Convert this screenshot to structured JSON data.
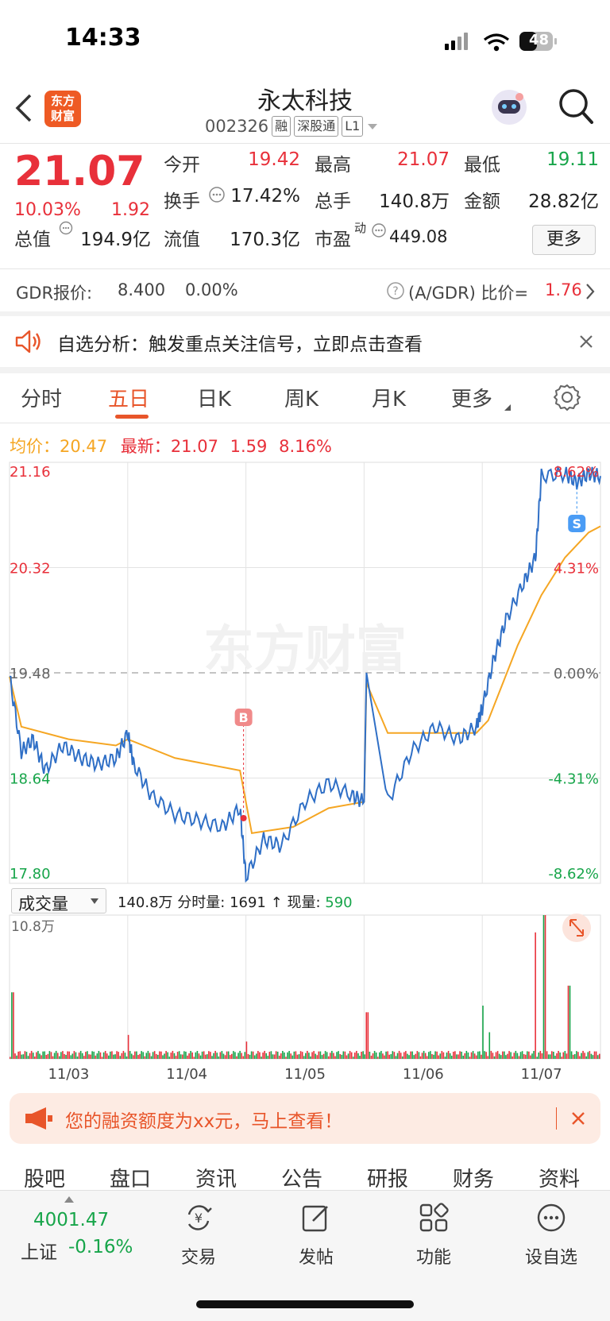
{
  "status_bar": {
    "time": "14:33",
    "battery": "48"
  },
  "header": {
    "logo_text_1": "东方",
    "logo_text_2": "财富",
    "stock_name": "永太科技",
    "stock_code": "002326",
    "tags": [
      "融",
      "深股通",
      "L1"
    ]
  },
  "quote": {
    "price": "21.07",
    "change_pct": "10.03%",
    "change": "1.92",
    "rows": [
      [
        {
          "label": "今开",
          "value": "19.42",
          "color": "red"
        },
        {
          "label": "最高",
          "value": "21.07",
          "color": "red"
        },
        {
          "label": "最低",
          "value": "19.11",
          "color": "green"
        }
      ],
      [
        {
          "label": "换手",
          "value": "17.42%",
          "color": "dark"
        },
        {
          "label": "总手",
          "value": "140.8万",
          "color": "dark"
        },
        {
          "label": "金额",
          "value": "28.82亿",
          "color": "dark"
        }
      ],
      [
        {
          "label": "总值",
          "value": "194.9亿",
          "color": "dark"
        },
        {
          "label": "流值",
          "value": "170.3亿",
          "color": "dark"
        },
        {
          "label": "市盈",
          "value": "449.08",
          "color": "dark"
        }
      ]
    ],
    "pe_sup": "动",
    "more": "更多"
  },
  "gdr": {
    "label": "GDR报价:",
    "price": "8.400",
    "pct": "0.00%",
    "ratio_label": "(A/GDR) 比价=",
    "ratio": "1.76"
  },
  "alert": {
    "text": "自选分析：触发重点关注信号，立即点击查看"
  },
  "tabs": [
    "分时",
    "五日",
    "日K",
    "周K",
    "月K",
    "更多"
  ],
  "active_tab": "五日",
  "legend": {
    "avg_label": "均价：",
    "avg": "20.47",
    "latest_label": "最新：",
    "latest": "21.07",
    "chg": "1.59",
    "pct": "8.16%"
  },
  "watermark": "东方财富",
  "volume_selector": {
    "label": "成交量",
    "total": "140.8万",
    "tick_label": "分时量:",
    "tick": "1691",
    "now_label": "现量:",
    "now": "590"
  },
  "colors": {
    "price_line": "#2f6fc6",
    "avg_line": "#f5a623",
    "up": "#e8303a",
    "down": "#17a54a"
  },
  "chart_data": {
    "type": "line",
    "title": "",
    "y_ticks_left": [
      "21.16",
      "20.32",
      "19.48",
      "18.64",
      "17.80"
    ],
    "y_ticks_right": [
      "8.62%",
      "4.31%",
      "0.00%",
      "-4.31%",
      "-8.62%"
    ],
    "ylim": [
      17.8,
      21.16
    ],
    "prev_close": 19.48,
    "x_labels": [
      "11/03",
      "11/04",
      "11/05",
      "11/06",
      "11/07"
    ],
    "markers": [
      {
        "label": "B",
        "day": "11/04"
      },
      {
        "label": "S",
        "day": "11/07"
      }
    ],
    "price_series": {
      "name": "",
      "x": [
        0,
        0.1,
        0.2,
        0.3,
        0.45,
        0.6,
        0.75,
        0.9,
        1.0,
        1.05,
        1.2,
        1.4,
        1.6,
        1.8,
        1.95,
        2.0,
        2.15,
        2.3,
        2.5,
        2.7,
        2.9,
        3.0,
        3.02,
        3.2,
        3.4,
        3.6,
        3.8,
        3.95,
        4.0,
        4.1,
        4.2,
        4.35,
        4.45,
        4.5,
        4.7,
        4.8,
        4.9,
        5.0
      ],
      "values": [
        19.45,
        18.85,
        18.95,
        18.7,
        18.9,
        18.8,
        18.75,
        18.8,
        19.0,
        18.75,
        18.5,
        18.35,
        18.3,
        18.25,
        18.4,
        17.85,
        18.15,
        18.1,
        18.45,
        18.6,
        18.5,
        18.45,
        19.48,
        18.45,
        18.85,
        19.05,
        18.95,
        19.05,
        19.2,
        19.6,
        19.9,
        20.2,
        20.4,
        21.05,
        21.07,
        21.0,
        21.07,
        21.05
      ]
    },
    "avg_series": {
      "name": "",
      "x": [
        0,
        0.1,
        0.5,
        0.9,
        1.0,
        1.4,
        1.95,
        2.05,
        2.4,
        2.7,
        3.0,
        3.02,
        3.2,
        3.5,
        3.95,
        4.05,
        4.3,
        4.5,
        4.7,
        4.9,
        5.0
      ],
      "values": [
        19.45,
        19.05,
        18.95,
        18.9,
        18.95,
        18.8,
        18.7,
        18.2,
        18.25,
        18.4,
        18.45,
        19.4,
        19.0,
        19.0,
        19.0,
        19.1,
        19.7,
        20.1,
        20.4,
        20.6,
        20.65
      ]
    },
    "volume_ymax": "10.8万",
    "volume_peaks": [
      {
        "x": 0.02,
        "v": 5.0
      },
      {
        "x": 1.0,
        "v": 1.8
      },
      {
        "x": 2.0,
        "v": 1.3
      },
      {
        "x": 3.02,
        "v": 3.5
      },
      {
        "x": 4.0,
        "v": 4.0
      },
      {
        "x": 4.05,
        "v": 2.0
      },
      {
        "x": 4.45,
        "v": 9.5
      },
      {
        "x": 4.52,
        "v": 10.8
      },
      {
        "x": 4.73,
        "v": 5.5
      }
    ]
  },
  "banner": {
    "text": "您的融资额度为xx元，马上查看！"
  },
  "bottom_tabs": [
    "股吧",
    "盘口",
    "资讯",
    "公告",
    "研报",
    "财务",
    "资料"
  ],
  "toolbar": {
    "index_value": "4001.47",
    "index_name": "上证",
    "index_pct": "-0.16%",
    "items": [
      "交易",
      "发帖",
      "功能",
      "设自选"
    ]
  }
}
